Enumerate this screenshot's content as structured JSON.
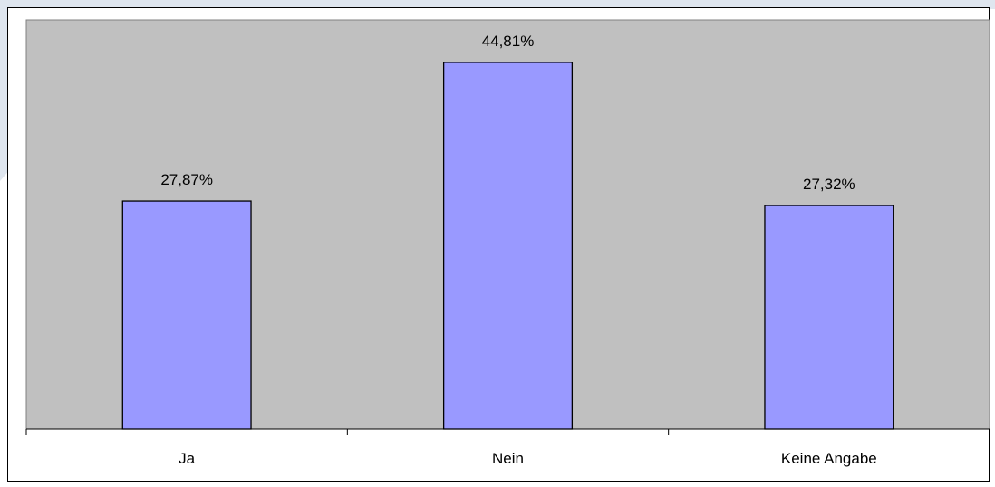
{
  "colors": {
    "plot_area": "#c0c0c0",
    "bar_fill": "#9999ff",
    "bar_stroke": "#000000",
    "chart_background": "#ffffff",
    "slide_decor": "#dfe6ef"
  },
  "chart_data": {
    "type": "bar",
    "categories": [
      "Ja",
      "Nein",
      "Keine Angabe"
    ],
    "values": [
      27.87,
      44.81,
      27.32
    ],
    "data_labels": [
      "27,87%",
      "44,81%",
      "27,32%"
    ],
    "ylim": [
      0,
      50
    ],
    "grid": false,
    "legend": "none"
  }
}
